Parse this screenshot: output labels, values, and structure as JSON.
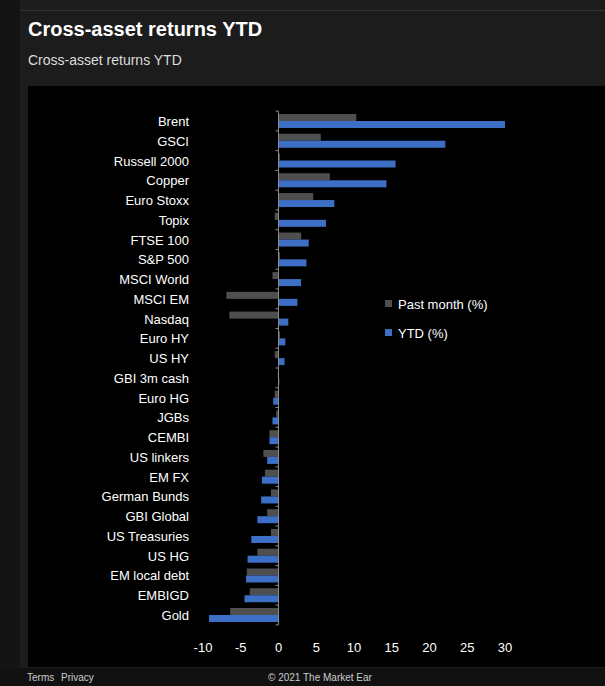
{
  "page": {
    "footer_links": [
      "Terms",
      "Privacy"
    ],
    "copyright": "© 2021 The Market Ear"
  },
  "chart_data": {
    "type": "bar",
    "orientation": "horizontal",
    "title": "Cross-asset returns YTD",
    "subtitle": "Cross-asset returns YTD",
    "categories": [
      "Brent",
      "GSCI",
      "Russell 2000",
      "Copper",
      "Euro Stoxx",
      "Topix",
      "FTSE 100",
      "S&P 500",
      "MSCI World",
      "MSCI EM",
      "Nasdaq",
      "Euro HY",
      "US HY",
      "GBI 3m cash",
      "Euro HG",
      "JGBs",
      "CEMBI",
      "US linkers",
      "EM FX",
      "German Bunds",
      "GBI Global",
      "US Treasuries",
      "US HG",
      "EM local debt",
      "EMBIGD",
      "Gold"
    ],
    "series": [
      {
        "name": "Past month (%)",
        "color": "#4f4f4f",
        "values": [
          10.3,
          5.6,
          0.2,
          6.8,
          4.6,
          -0.5,
          3.0,
          0.2,
          -0.8,
          -6.9,
          -6.5,
          0.2,
          -0.5,
          -0.1,
          -0.5,
          -0.3,
          -1.2,
          -2.0,
          -1.8,
          -1.0,
          -1.5,
          -1.0,
          -2.8,
          -4.2,
          -3.8,
          -6.4
        ]
      },
      {
        "name": "YTD (%)",
        "color": "#3d6fc6",
        "values": [
          30,
          22.1,
          15.5,
          14.3,
          7.4,
          6.3,
          4.0,
          3.7,
          3.0,
          2.5,
          1.3,
          0.9,
          0.8,
          0.1,
          -0.7,
          -0.8,
          -1.2,
          -1.5,
          -2.2,
          -2.3,
          -2.8,
          -3.6,
          -4.1,
          -4.3,
          -4.5,
          -9.2
        ]
      }
    ],
    "xlim": [
      -10,
      30
    ],
    "xticks": [
      -10,
      -5,
      0,
      5,
      10,
      15,
      20,
      25,
      30
    ],
    "grid": false,
    "legend": "right"
  }
}
